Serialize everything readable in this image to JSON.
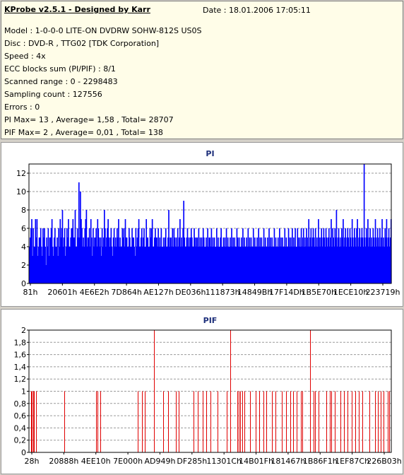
{
  "info": {
    "title": "KProbe v2.5.1 - Designed by Karr",
    "date": "Date : 18.01.2006 17:05:11",
    "lines": [
      "Model : 1-0-0-0 LITE-ON DVDRW SOHW-812S  US0S",
      "Disc : DVD-R , TTG02 [TDK Corporation]",
      "Speed : 4x",
      "ECC blocks sum (PI/PIF) : 8/1",
      "Scanned range : 0 - 2298483",
      "Sampling count : 127556",
      "Errors : 0",
      "PI Max= 13 , Average= 1,58 , Total= 28707",
      "PIF Max= 2 , Average= 0,01 , Total= 138"
    ]
  },
  "colors": {
    "pi_series": "#0000ff",
    "pif_series": "#e00000",
    "title": "#1c2e7a",
    "info_background": "#fffde8",
    "window_background": "#d4d0c8"
  },
  "chart_data": [
    {
      "type": "bar",
      "title": "PI",
      "xlabel": "",
      "ylabel": "",
      "x_tick_labels": [
        "81h",
        "20601h",
        "4E6E2h",
        "7D864h",
        "AE127h",
        "DE036h",
        "111873h",
        "14849Bh",
        "17F14Dh",
        "1B5E70h",
        "1ECE10h",
        "223719h"
      ],
      "y_ticks": [
        0,
        2,
        4,
        6,
        8,
        10,
        12
      ],
      "y_tick_labels": [
        "0",
        "2",
        "4",
        "6",
        "8",
        "10",
        "12"
      ],
      "ylim": [
        0,
        13
      ],
      "grid": true,
      "series": [
        {
          "values": [
            4,
            5,
            6,
            7,
            3,
            6,
            4,
            4,
            7,
            5,
            7,
            3,
            4,
            5,
            5,
            6,
            4,
            3,
            6,
            5,
            6,
            4,
            2,
            5,
            4,
            6,
            3,
            5,
            5,
            6,
            7,
            4,
            3,
            5,
            6,
            4,
            4,
            5,
            3,
            6,
            4,
            7,
            5,
            6,
            8,
            4,
            5,
            6,
            3,
            4,
            6,
            5,
            7,
            4,
            4,
            5,
            6,
            6,
            7,
            5,
            5,
            8,
            4,
            4,
            6,
            5,
            11,
            5,
            10,
            7,
            6,
            4,
            5,
            4,
            6,
            7,
            8,
            4,
            5,
            5,
            6,
            4,
            7,
            5,
            3,
            6,
            4,
            5,
            5,
            6,
            4,
            7,
            6,
            5,
            4,
            5,
            3,
            6,
            4,
            5,
            8,
            6,
            4,
            5,
            6,
            7,
            5,
            4,
            5,
            6,
            4,
            3,
            5,
            6,
            4,
            5,
            4,
            6,
            5,
            7,
            4,
            5,
            4,
            4,
            6,
            5,
            6,
            4,
            7,
            5,
            5,
            4,
            4,
            6,
            5,
            4,
            4,
            6,
            5,
            5,
            4,
            3,
            6,
            4,
            5,
            6,
            7,
            4,
            4,
            5,
            6,
            4,
            5,
            6,
            4,
            4,
            7,
            5,
            5,
            4,
            4,
            6,
            5,
            6,
            7,
            4,
            4,
            5,
            6,
            5,
            5,
            4,
            6,
            4,
            5,
            4,
            6,
            4,
            4,
            5,
            4,
            5,
            6,
            4,
            4,
            5,
            8,
            4,
            5,
            5,
            4,
            6,
            4,
            6,
            5,
            4,
            5,
            4,
            6,
            4,
            5,
            7,
            4,
            5,
            4,
            6,
            9,
            5,
            4,
            4,
            5,
            6,
            4,
            5,
            4,
            5,
            6,
            5,
            4,
            4,
            6,
            5,
            4,
            5,
            5,
            4,
            6,
            4,
            5,
            4,
            5,
            4,
            6,
            5,
            4,
            4,
            5,
            4,
            6,
            4,
            5,
            5,
            4,
            6,
            4,
            5,
            4,
            5,
            4,
            4,
            6,
            4,
            5,
            4,
            4,
            5,
            6,
            4,
            4,
            5,
            4,
            5,
            4,
            6,
            4,
            5,
            4,
            4,
            5,
            4,
            6,
            4,
            5,
            4,
            5,
            4,
            4,
            6,
            5,
            4,
            5,
            4,
            4,
            5,
            4,
            6,
            4,
            5,
            4,
            4,
            5,
            4,
            6,
            4,
            5,
            4,
            5,
            4,
            4,
            6,
            4,
            5,
            4,
            4,
            5,
            4,
            6,
            4,
            5,
            4,
            5,
            4,
            4,
            6,
            4,
            5,
            4,
            4,
            5,
            4,
            6,
            4,
            5,
            4,
            5,
            4,
            4,
            6,
            4,
            5,
            4,
            4,
            5,
            4,
            6,
            4,
            5,
            4,
            5,
            4,
            4,
            6,
            4,
            5,
            4,
            4,
            6,
            5,
            4,
            5,
            4,
            6,
            4,
            5,
            4,
            6,
            4,
            4,
            6,
            5,
            4,
            5,
            4,
            6,
            4,
            5,
            6,
            4,
            5,
            4,
            6,
            5,
            4,
            7,
            4,
            5,
            6,
            4,
            5,
            6,
            5,
            4,
            6,
            4,
            5,
            4,
            7,
            5,
            4,
            5,
            6,
            4,
            5,
            6,
            5,
            4,
            6,
            5,
            4,
            5,
            6,
            4,
            5,
            7,
            4,
            6,
            5,
            4,
            6,
            5,
            8,
            4,
            5,
            6,
            4,
            5,
            4,
            6,
            5,
            7,
            4,
            5,
            6,
            4,
            5,
            6,
            5,
            4,
            6,
            5,
            4,
            7,
            5,
            4,
            6,
            5,
            4,
            6,
            7,
            4,
            5,
            6,
            4,
            5,
            6,
            5,
            4,
            13,
            5,
            4,
            6,
            5,
            7,
            4,
            5,
            6,
            4,
            5,
            4,
            6,
            5,
            4,
            7,
            5,
            4,
            6,
            5,
            4,
            6,
            4,
            5,
            7,
            4,
            5,
            4,
            6,
            5,
            7,
            4,
            5,
            6,
            4,
            5,
            7
          ],
          "color": "#0000ff"
        }
      ]
    },
    {
      "type": "bar",
      "title": "PIF",
      "xlabel": "",
      "ylabel": "",
      "x_tick_labels": [
        "28h",
        "20888h",
        "4EE10h",
        "7E000h",
        "AD949h",
        "DF285h",
        "11301Ch",
        "14B01Fh",
        "181467h",
        "1B86F1h",
        "1EF87Ch",
        "226B03h"
      ],
      "y_ticks": [
        0,
        0.2,
        0.4,
        0.6,
        0.8,
        1.0,
        1.2,
        1.4,
        1.6,
        1.8,
        2.0
      ],
      "y_tick_labels": [
        "0",
        "0,2",
        "0,4",
        "0,6",
        "0,8",
        "1",
        "1,2",
        "1,4",
        "1,6",
        "1,8",
        "2"
      ],
      "ylim": [
        0,
        2
      ],
      "grid": true,
      "series": [
        {
          "x_frac": [
            0.005,
            0.008,
            0.011,
            0.014,
            0.02,
            0.098,
            0.185,
            0.19,
            0.196,
            0.3,
            0.312,
            0.32,
            0.345,
            0.37,
            0.384,
            0.405,
            0.413,
            0.455,
            0.465,
            0.48,
            0.49,
            0.5,
            0.52,
            0.545,
            0.556,
            0.575,
            0.578,
            0.582,
            0.589,
            0.594,
            0.61,
            0.625,
            0.635,
            0.648,
            0.655,
            0.67,
            0.68,
            0.697,
            0.71,
            0.722,
            0.73,
            0.738,
            0.75,
            0.755,
            0.775,
            0.785,
            0.79,
            0.8,
            0.82,
            0.83,
            0.835,
            0.845,
            0.86,
            0.87,
            0.88,
            0.89,
            0.9,
            0.91,
            0.92,
            0.94,
            0.955,
            0.962,
            0.97,
            0.978,
            0.99,
            0.995
          ],
          "values": [
            1,
            1,
            1,
            1,
            1,
            1,
            1,
            1,
            1,
            1,
            1,
            1,
            2,
            1,
            1,
            1,
            1,
            1,
            1,
            1,
            1,
            1,
            1,
            1,
            2,
            1,
            1,
            1,
            1,
            1,
            1,
            1,
            1,
            1,
            1,
            1,
            1,
            1,
            1,
            1,
            1,
            1,
            1,
            1,
            2,
            1,
            1,
            1,
            1,
            1,
            1,
            1,
            1,
            1,
            1,
            1,
            1,
            1,
            1,
            1,
            1,
            1,
            1,
            1,
            1,
            1
          ],
          "color": "#e00000"
        }
      ]
    }
  ]
}
